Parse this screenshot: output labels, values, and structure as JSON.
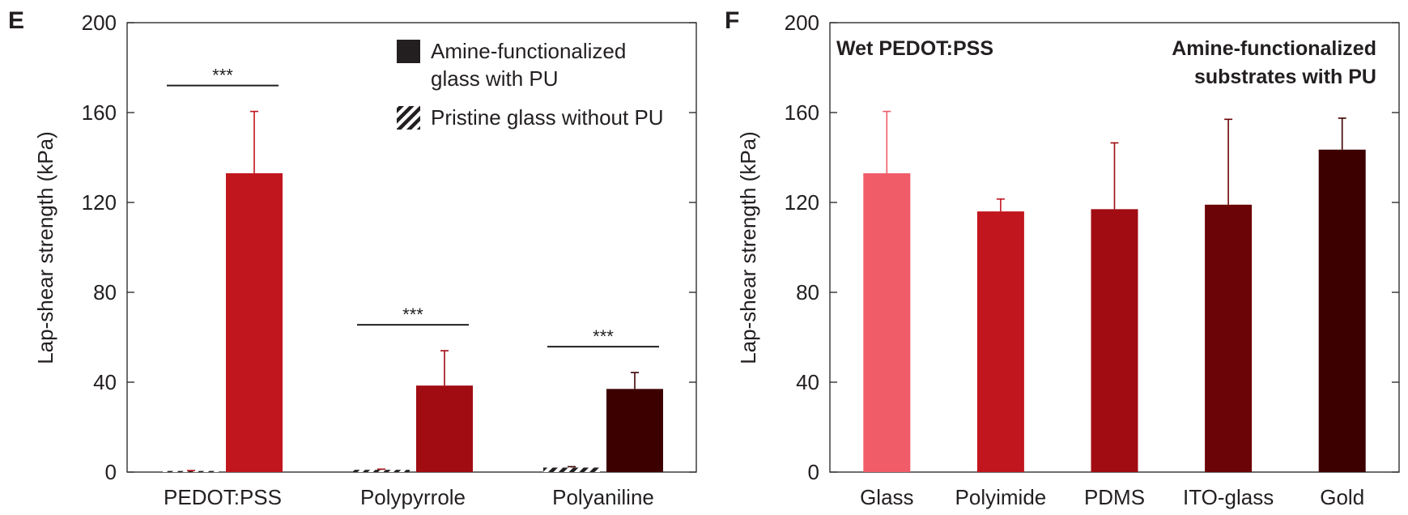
{
  "chart_data": [
    {
      "panel": "E",
      "type": "bar",
      "ylabel": "Lap-shear strength (kPa)",
      "ylim": [
        0,
        200
      ],
      "yticks": [
        "0",
        "40",
        "80",
        "120",
        "160",
        "200"
      ],
      "categories": [
        "PEDOT:PSS",
        "Polypyrrole",
        "Polyaniline"
      ],
      "legend": [
        {
          "label_lines": [
            "Amine-functionalized",
            "glass with PU"
          ],
          "style": "solid"
        },
        {
          "label_lines": [
            "Pristine glass without PU"
          ],
          "style": "hatched"
        }
      ],
      "series": [
        {
          "name": "Pristine glass without PU",
          "style": "hatched",
          "values": [
            0.5,
            1.0,
            2.0
          ],
          "errors": [
            0.2,
            0.3,
            0.4
          ],
          "colors": [
            "#c1161e",
            "#a00c12",
            "#3d0000"
          ]
        },
        {
          "name": "Amine-functionalized glass with PU",
          "style": "solid",
          "values": [
            133,
            38.5,
            37
          ],
          "errors": [
            27.5,
            15.5,
            7.3
          ],
          "colors": [
            "#c1161e",
            "#a00c12",
            "#3d0000"
          ]
        }
      ],
      "significance": [
        "***",
        "***",
        "***"
      ]
    },
    {
      "panel": "F",
      "type": "bar",
      "ylabel": "Lap-shear strength (kPa)",
      "ylim": [
        0,
        200
      ],
      "yticks": [
        "0",
        "40",
        "80",
        "120",
        "160",
        "200"
      ],
      "categories": [
        "Glass",
        "Polyimide",
        "PDMS",
        "ITO-glass",
        "Gold"
      ],
      "values": [
        133,
        116,
        117,
        119,
        143.5
      ],
      "errors": [
        27.5,
        5.5,
        29.5,
        38,
        14
      ],
      "colors": [
        "#f15c69",
        "#c1161e",
        "#a00c12",
        "#6b0406",
        "#3d0000"
      ],
      "annotation_left": "Wet PEDOT:PSS",
      "annotation_right_lines": [
        "Amine-functionalized",
        "substrates with PU"
      ]
    }
  ]
}
